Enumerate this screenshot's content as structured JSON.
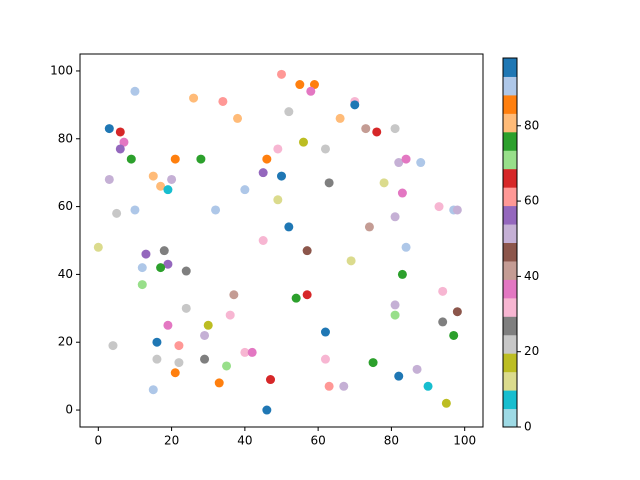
{
  "chart_data": {
    "type": "scatter",
    "x": [
      3,
      6,
      10,
      7,
      6,
      9,
      3,
      5,
      10,
      0,
      15,
      17,
      19,
      20,
      21,
      26,
      28,
      34,
      38,
      40,
      32,
      45,
      46,
      49,
      50,
      49,
      45,
      52,
      50,
      55,
      59,
      58,
      52,
      56,
      62,
      63,
      70,
      70,
      66,
      73,
      76,
      81,
      82,
      84,
      88,
      78,
      83,
      81,
      74,
      93,
      97,
      98,
      84,
      57,
      69,
      83,
      13,
      18,
      19,
      12,
      17,
      24,
      12,
      37,
      57,
      54,
      24,
      36,
      81,
      81,
      94,
      98,
      94,
      97,
      62,
      19,
      30,
      29,
      16,
      22,
      4,
      16,
      22,
      29,
      40,
      42,
      35,
      62,
      75,
      87,
      21,
      33,
      47,
      63,
      67,
      82,
      90,
      95,
      15,
      46
    ],
    "y": [
      83,
      82,
      94,
      79,
      77,
      74,
      68,
      58,
      59,
      48,
      69,
      66,
      65,
      68,
      74,
      92,
      74,
      91,
      86,
      65,
      59,
      70,
      74,
      77,
      69,
      62,
      50,
      54,
      99,
      96,
      96,
      94,
      88,
      79,
      77,
      67,
      91,
      90,
      86,
      83,
      82,
      83,
      73,
      74,
      73,
      67,
      64,
      57,
      54,
      60,
      59,
      59,
      48,
      47,
      44,
      40,
      46,
      47,
      43,
      42,
      42,
      41,
      37,
      34,
      34,
      33,
      30,
      28,
      31,
      28,
      35,
      29,
      26,
      22,
      23,
      25,
      25,
      22,
      20,
      19,
      19,
      15,
      14,
      15,
      17,
      17,
      13,
      15,
      14,
      12,
      11,
      8,
      9,
      7,
      7,
      10,
      7,
      2,
      6,
      0
    ],
    "c": [
      96,
      66,
      91,
      37,
      56,
      76,
      51,
      22,
      91,
      12,
      81,
      81,
      7,
      51,
      86,
      81,
      76,
      61,
      81,
      91,
      91,
      56,
      86,
      32,
      96,
      12,
      32,
      96,
      61,
      86,
      86,
      37,
      22,
      17,
      22,
      27,
      32,
      96,
      81,
      42,
      66,
      22,
      51,
      37,
      91,
      12,
      37,
      51,
      42,
      32,
      91,
      51,
      91,
      47,
      12,
      76,
      56,
      27,
      56,
      91,
      76,
      27,
      71,
      42,
      66,
      76,
      22,
      32,
      51,
      71,
      32,
      47,
      27,
      76,
      96,
      37,
      17,
      51,
      96,
      61,
      22,
      22,
      22,
      27,
      32,
      37,
      71,
      32,
      76,
      51,
      86,
      86,
      66,
      61,
      51,
      96,
      7,
      17,
      91,
      96
    ],
    "colormap": [
      "#9edae5",
      "#17becf",
      "#dbdb8d",
      "#bcbd22",
      "#c7c7c7",
      "#7f7f7f",
      "#f7b6d2",
      "#e377c2",
      "#c49c94",
      "#8c564b",
      "#c5b0d5",
      "#9467bd",
      "#ff9896",
      "#d62728",
      "#98df8a",
      "#2ca02c",
      "#ffbb78",
      "#ff7f0e",
      "#aec7e8",
      "#1f77b4"
    ],
    "clim": [
      0,
      98
    ],
    "cticks": [
      0,
      20,
      40,
      60,
      80
    ],
    "xlim": [
      -5,
      105
    ],
    "ylim": [
      -5,
      105
    ],
    "xticks": [
      0,
      20,
      40,
      60,
      80,
      100
    ],
    "yticks": [
      0,
      20,
      40,
      60,
      80,
      100
    ]
  }
}
